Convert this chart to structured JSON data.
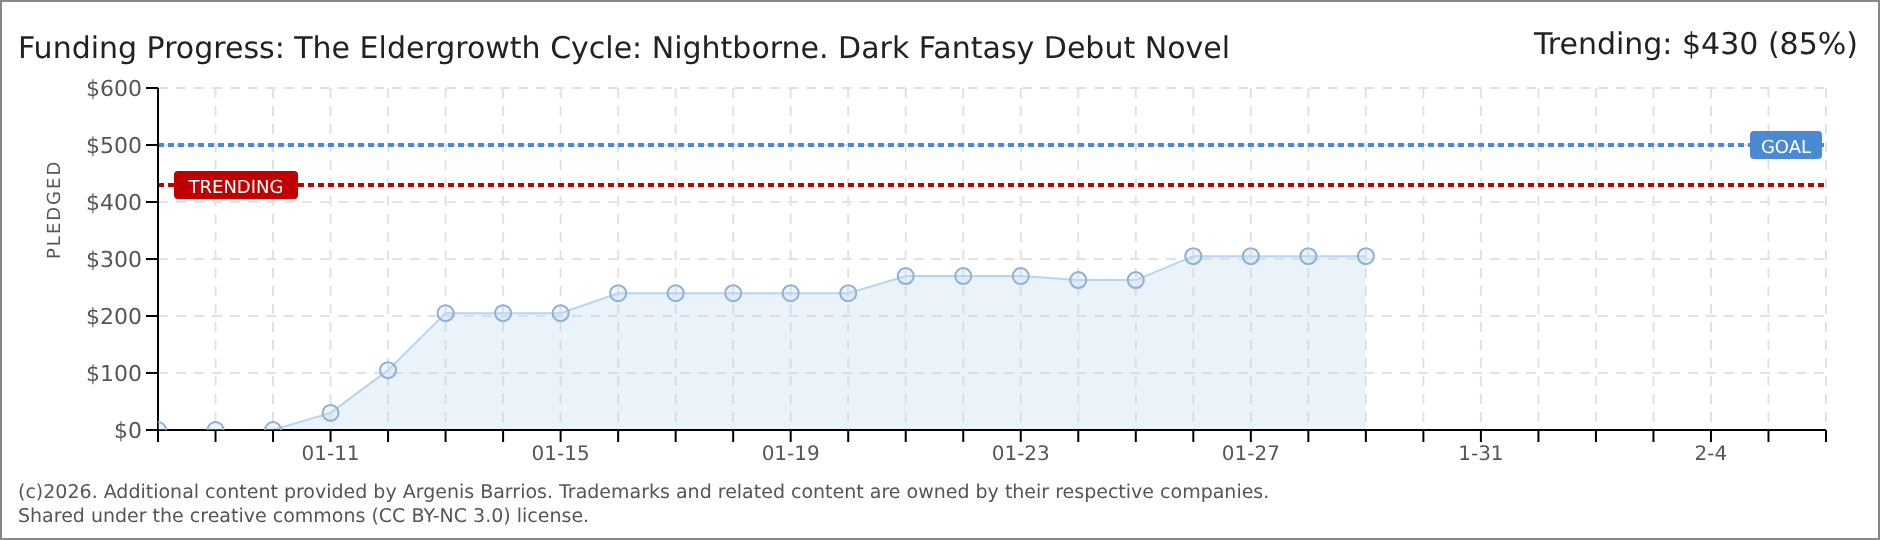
{
  "chart_data": {
    "type": "area",
    "title": "Funding Progress: The Eldergrowth Cycle: Nightborne. Dark Fantasy Debut Novel",
    "subtitle": "Trending: $430 (85%)",
    "ylabel": "PLEDGED",
    "x": [
      "2026-01-08",
      "2026-01-09",
      "2026-01-10",
      "2026-01-11",
      "2026-01-12",
      "2026-01-13",
      "2026-01-14",
      "2026-01-15",
      "2026-01-16",
      "2026-01-17",
      "2026-01-18",
      "2026-01-19",
      "2026-01-20",
      "2026-01-21",
      "2026-01-22",
      "2026-01-23",
      "2026-01-24",
      "2026-01-25",
      "2026-01-26",
      "2026-01-27",
      "2026-01-28",
      "2026-01-29"
    ],
    "series": [
      {
        "color": "#b8d4f0",
        "values": [
          0,
          0,
          0,
          30,
          105,
          205,
          205,
          205,
          240,
          240,
          240,
          240,
          240,
          270,
          270,
          270,
          263,
          263,
          305,
          305,
          305,
          305
        ]
      }
    ],
    "xlim": [
      "2026-01-08",
      "2026-02-06"
    ],
    "xticks": [
      {
        "value": "2026-01-08",
        "label": null
      },
      {
        "value": "2026-01-09",
        "label": null
      },
      {
        "value": "2026-01-10",
        "label": null
      },
      {
        "value": "2026-01-11",
        "label": "01-11"
      },
      {
        "value": "2026-01-12",
        "label": null
      },
      {
        "value": "2026-01-13",
        "label": null
      },
      {
        "value": "2026-01-14",
        "label": null
      },
      {
        "value": "2026-01-15",
        "label": "01-15"
      },
      {
        "value": "2026-01-16",
        "label": null
      },
      {
        "value": "2026-01-17",
        "label": null
      },
      {
        "value": "2026-01-18",
        "label": null
      },
      {
        "value": "2026-01-19",
        "label": "01-19"
      },
      {
        "value": "2026-01-20",
        "label": null
      },
      {
        "value": "2026-01-21",
        "label": null
      },
      {
        "value": "2026-01-22",
        "label": null
      },
      {
        "value": "2026-01-23",
        "label": "01-23"
      },
      {
        "value": "2026-01-24",
        "label": null
      },
      {
        "value": "2026-01-25",
        "label": null
      },
      {
        "value": "2026-01-26",
        "label": null
      },
      {
        "value": "2026-01-27",
        "label": "01-27"
      },
      {
        "value": "2026-01-28",
        "label": null
      },
      {
        "value": "2026-01-29",
        "label": null
      },
      {
        "value": "2026-01-30",
        "label": null
      },
      {
        "value": "2026-01-31",
        "label": "1-31"
      },
      {
        "value": "2026-02-01",
        "label": null
      },
      {
        "value": "2026-02-02",
        "label": null
      },
      {
        "value": "2026-02-03",
        "label": null
      },
      {
        "value": "2026-02-04",
        "label": "2-4"
      },
      {
        "value": "2026-02-05",
        "label": null
      },
      {
        "value": "2026-02-06",
        "label": null
      }
    ],
    "ylim": [
      0,
      600
    ],
    "yticks": [
      {
        "value": 0,
        "label": "$0"
      },
      {
        "value": 100,
        "label": "$100"
      },
      {
        "value": 200,
        "label": "$200"
      },
      {
        "value": 300,
        "label": "$300"
      },
      {
        "value": 400,
        "label": "$400"
      },
      {
        "value": 500,
        "label": "$500"
      },
      {
        "value": 600,
        "label": "$600"
      }
    ],
    "ref_lines": [
      {
        "axis": "y",
        "value": 500,
        "label": "GOAL",
        "color": "#4a8ad4",
        "line_style": "dotted"
      },
      {
        "axis": "y",
        "value": 430,
        "label": "TRENDING",
        "color": "#c00000",
        "line_style": "dotted"
      }
    ],
    "grid": true,
    "marker": "circle",
    "annotations": [
      "(c)2026. Additional content provided by Argenis Barrios. Trademarks and related content are owned by their respective companies.",
      "Shared under the creative commons (CC BY-NC 3.0) license."
    ]
  }
}
